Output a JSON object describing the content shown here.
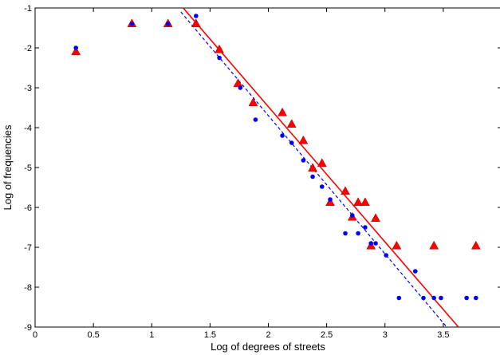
{
  "chart_data": {
    "type": "scatter",
    "title": "",
    "xlabel": "Log of degrees of streets",
    "ylabel": "Log of frequencies",
    "xlim": [
      0,
      4
    ],
    "ylim": [
      -9,
      -1
    ],
    "xticks": [
      0,
      0.5,
      1,
      1.5,
      2,
      2.5,
      3,
      3.5
    ],
    "xtick_labels": [
      "0",
      "0.5",
      "1",
      "1.5",
      "2",
      "2.5",
      "3",
      "3.5"
    ],
    "yticks": [
      -9,
      -8,
      -7,
      -6,
      -5,
      -4,
      -3,
      -2,
      -1
    ],
    "ytick_labels": [
      "-9",
      "-8",
      "-7",
      "-6",
      "-5",
      "-4",
      "-3",
      "-2",
      "-1"
    ],
    "grid": false,
    "series": [
      {
        "marker": "dot",
        "color": "#0000ff",
        "points": [
          [
            0.35,
            -2.0
          ],
          [
            0.83,
            -1.4
          ],
          [
            1.14,
            -1.4
          ],
          [
            1.38,
            -1.2
          ],
          [
            1.58,
            -2.25
          ],
          [
            1.76,
            -3.0
          ],
          [
            1.89,
            -3.8
          ],
          [
            2.12,
            -4.2
          ],
          [
            2.2,
            -4.38
          ],
          [
            2.3,
            -4.82
          ],
          [
            2.38,
            -5.23
          ],
          [
            2.46,
            -5.48
          ],
          [
            2.53,
            -5.8
          ],
          [
            2.66,
            -6.65
          ],
          [
            2.72,
            -6.2
          ],
          [
            2.77,
            -6.65
          ],
          [
            2.83,
            -6.5
          ],
          [
            2.88,
            -6.9
          ],
          [
            2.92,
            -6.9
          ],
          [
            3.01,
            -7.2
          ],
          [
            3.12,
            -8.27
          ],
          [
            3.26,
            -7.6
          ],
          [
            3.33,
            -8.27
          ],
          [
            3.42,
            -8.27
          ],
          [
            3.48,
            -8.27
          ],
          [
            3.7,
            -8.27
          ],
          [
            3.78,
            -8.27
          ]
        ]
      },
      {
        "marker": "triangle",
        "color": "#ff0000",
        "points": [
          [
            0.35,
            -2.1
          ],
          [
            0.83,
            -1.4
          ],
          [
            1.14,
            -1.4
          ],
          [
            1.38,
            -1.4
          ],
          [
            1.58,
            -2.05
          ],
          [
            1.74,
            -2.9
          ],
          [
            1.87,
            -3.38
          ],
          [
            2.12,
            -3.63
          ],
          [
            2.2,
            -3.92
          ],
          [
            2.3,
            -4.33
          ],
          [
            2.38,
            -5.02
          ],
          [
            2.46,
            -4.9
          ],
          [
            2.53,
            -5.88
          ],
          [
            2.66,
            -5.6
          ],
          [
            2.72,
            -6.25
          ],
          [
            2.77,
            -5.88
          ],
          [
            2.83,
            -5.88
          ],
          [
            2.88,
            -6.97
          ],
          [
            2.92,
            -6.28
          ],
          [
            3.1,
            -6.97
          ],
          [
            3.42,
            -6.97
          ],
          [
            3.78,
            -6.97
          ]
        ]
      }
    ],
    "fit_lines": [
      {
        "style": "solid",
        "color": "#ff0000",
        "x1": 1.27,
        "y1": -1.0,
        "x2": 3.63,
        "y2": -9.0
      },
      {
        "style": "dashed",
        "color": "#0000ff",
        "x1": 1.25,
        "y1": -1.1,
        "x2": 3.53,
        "y2": -9.0
      }
    ]
  }
}
